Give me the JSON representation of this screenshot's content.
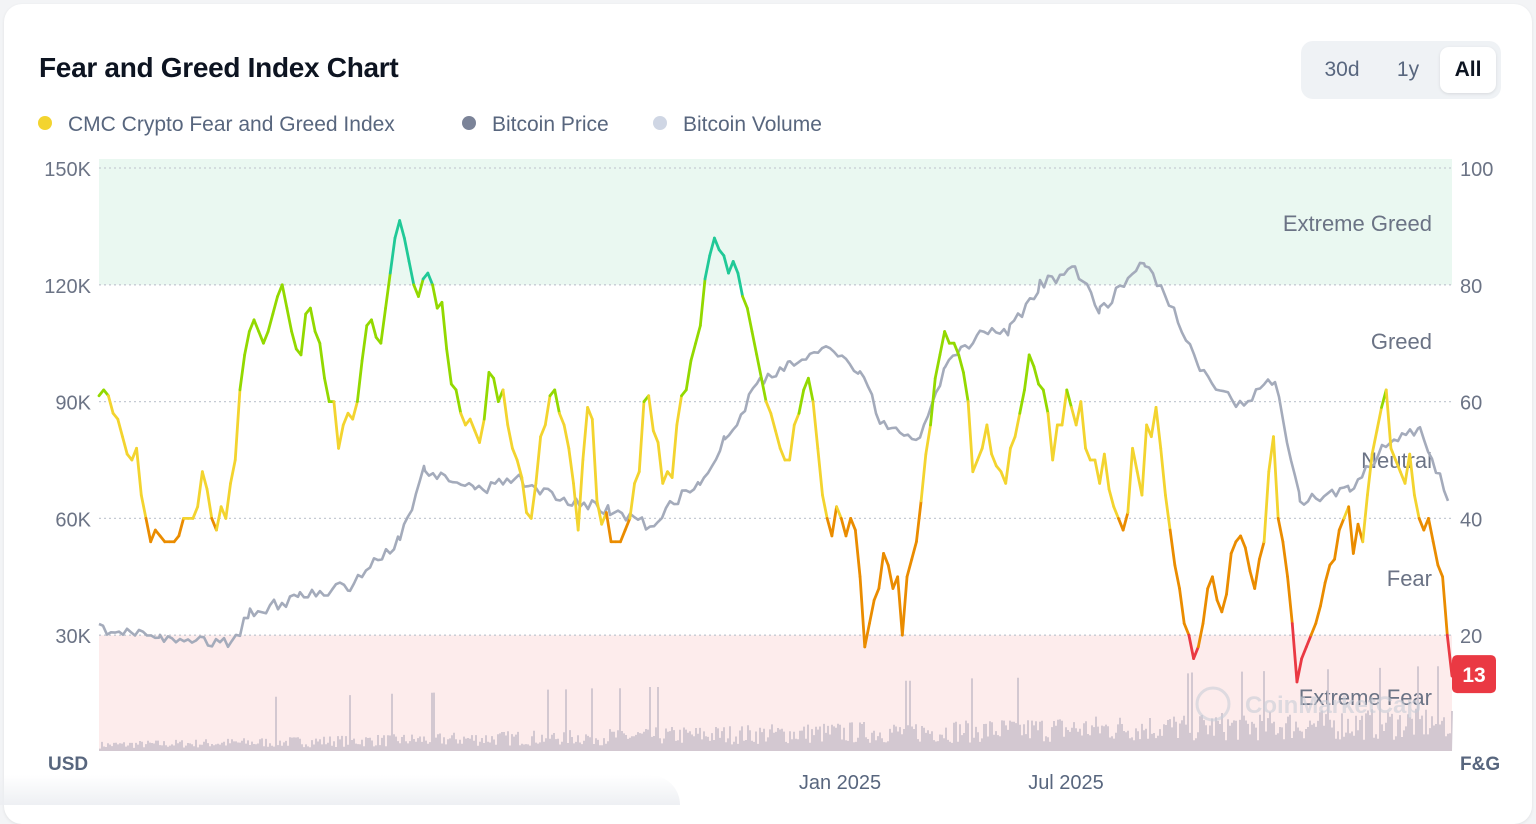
{
  "header": {
    "title": "Fear and Greed Index Chart"
  },
  "range_buttons": [
    {
      "label": "30d",
      "active": false
    },
    {
      "label": "1y",
      "active": false
    },
    {
      "label": "All",
      "active": true
    }
  ],
  "legend": [
    {
      "label": "CMC Crypto Fear and Greed Index",
      "color": "#f3d42f"
    },
    {
      "label": "Bitcoin Price",
      "color": "#7b8398"
    },
    {
      "label": "Bitcoin Volume",
      "color": "#cfd6e4"
    }
  ],
  "watermark": "CoinMarketCap",
  "chart_data": {
    "type": "line",
    "x_ticks": [
      "Jan 2025",
      "Jul 2025"
    ],
    "left_axis": {
      "unit_label": "USD",
      "ticks": [
        "150K",
        "120K",
        "90K",
        "60K",
        "30K"
      ],
      "ylim": [
        0,
        150000
      ]
    },
    "right_axis": {
      "unit_label": "F&G",
      "ticks": [
        "100",
        "80",
        "60",
        "40",
        "20"
      ],
      "ylim": [
        0,
        100
      ]
    },
    "zones": [
      {
        "label": "Extreme Greed",
        "range": [
          80,
          100
        ],
        "color": "#20c997"
      },
      {
        "label": "Greed",
        "range": [
          60,
          80
        ],
        "color": "#93d900"
      },
      {
        "label": "Neutral",
        "range": [
          40,
          60
        ],
        "color": "#f3d42f"
      },
      {
        "label": "Fear",
        "range": [
          20,
          40
        ],
        "color": "#ea8c00"
      },
      {
        "label": "Extreme Fear",
        "range": [
          0,
          20
        ],
        "color": "#ea3943"
      }
    ],
    "current_value": "13",
    "fear_greed": [
      61,
      62,
      61,
      58,
      57,
      54,
      51,
      50,
      52,
      44,
      40,
      36,
      38,
      37,
      36,
      36,
      36,
      37,
      40,
      40,
      40,
      42,
      48,
      45,
      40,
      38,
      42,
      40,
      46,
      50,
      62,
      68,
      72,
      74,
      72,
      70,
      72,
      75,
      78,
      80,
      76,
      72,
      69,
      68,
      75,
      76,
      72,
      70,
      64,
      60,
      60,
      52,
      56,
      58,
      57,
      60,
      67,
      73,
      74,
      71,
      70,
      76,
      82,
      88,
      91,
      88,
      84,
      80,
      78,
      81,
      82,
      80,
      76,
      77,
      69,
      63,
      62,
      58,
      56,
      57,
      55,
      53,
      57,
      65,
      64,
      60,
      62,
      56,
      52,
      50,
      47,
      41,
      40,
      46,
      54,
      56,
      61,
      62,
      58,
      56,
      52,
      46,
      38,
      50,
      59,
      57,
      43,
      39,
      41,
      36,
      36,
      36,
      38,
      40,
      46,
      48,
      60,
      61,
      55,
      53,
      46,
      48,
      47,
      56,
      61,
      62,
      67,
      70,
      73,
      81,
      85,
      88,
      86,
      85,
      82,
      84,
      82,
      78,
      76,
      72,
      68,
      64,
      60,
      58,
      55,
      52,
      50,
      50,
      56,
      58,
      62,
      64,
      60,
      52,
      44,
      40,
      37,
      42,
      40,
      37,
      40,
      38,
      30,
      18,
      22,
      26,
      28,
      34,
      32,
      28,
      30,
      20,
      30,
      33,
      36,
      43,
      51,
      56,
      64,
      68,
      72,
      70,
      70,
      68,
      65,
      60,
      48,
      50,
      52,
      56,
      51,
      49,
      48,
      46,
      52,
      54,
      58,
      62,
      68,
      66,
      63,
      62,
      58,
      50,
      56,
      56,
      62,
      59,
      56,
      60,
      52,
      50,
      50,
      46,
      51,
      45,
      42,
      40,
      38,
      41,
      52,
      48,
      44,
      56,
      54,
      59,
      52,
      44,
      38,
      32,
      28,
      22,
      20,
      16,
      18,
      22,
      28,
      30,
      26,
      24,
      27,
      34,
      36,
      37,
      35,
      31,
      28,
      33,
      36,
      48,
      54,
      40,
      36,
      30,
      22,
      12,
      16,
      18,
      20,
      22,
      25,
      29,
      32,
      33,
      38,
      40,
      42,
      34,
      39,
      36,
      44,
      51,
      55,
      59,
      62,
      52,
      50,
      48,
      46,
      51,
      44,
      40,
      38,
      40,
      36,
      32,
      30,
      20,
      13
    ]
  }
}
